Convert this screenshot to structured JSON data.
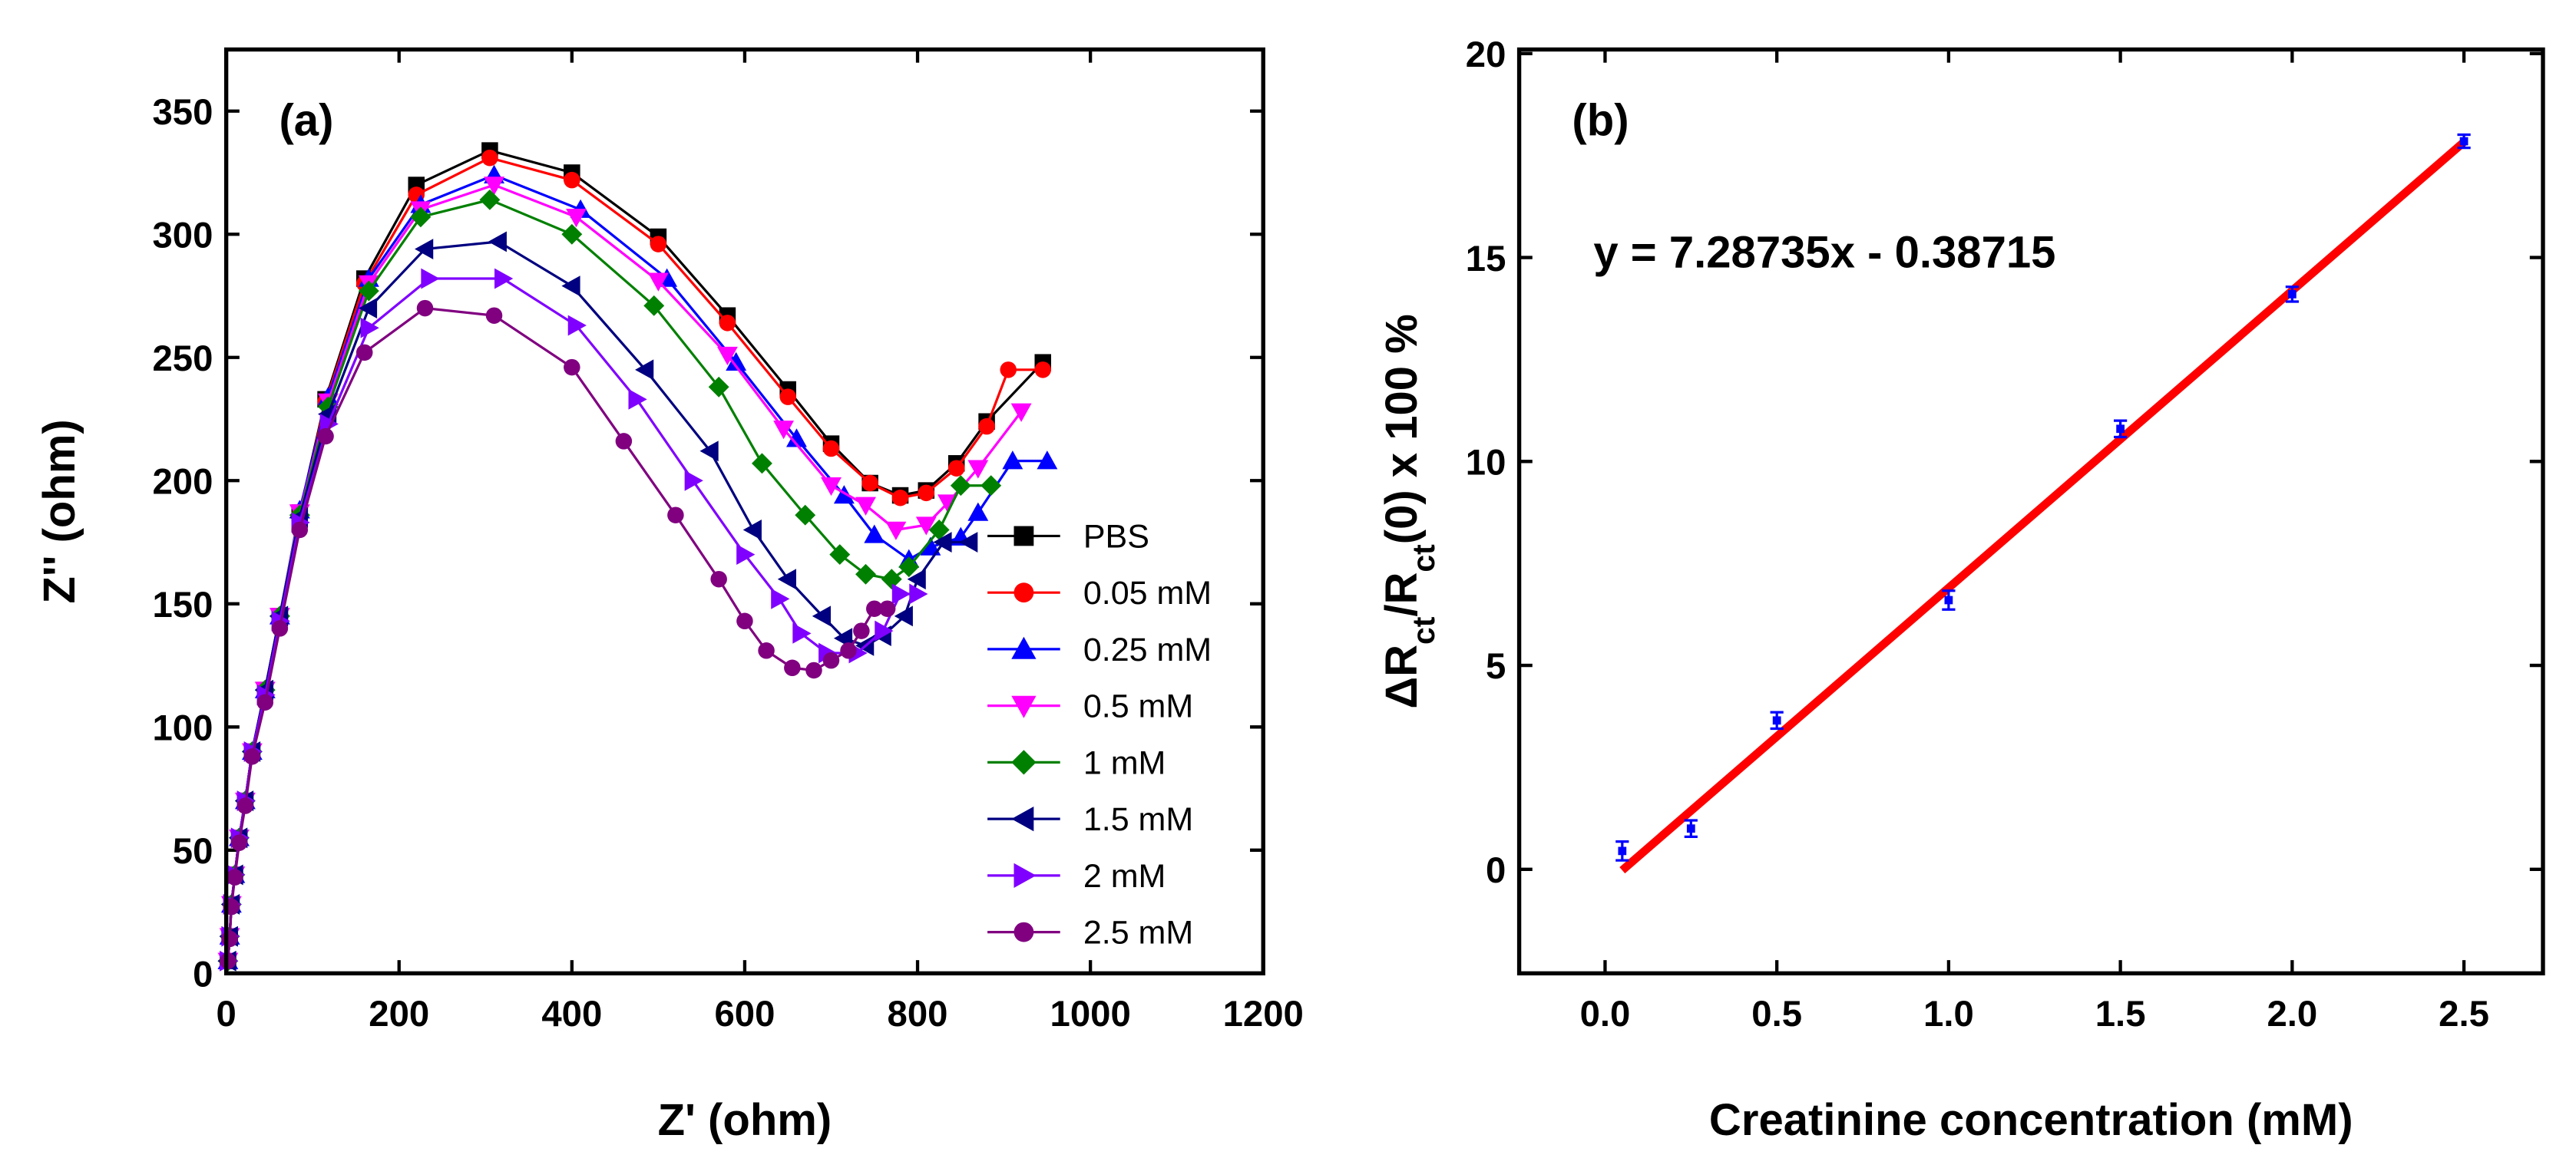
{
  "chart_data": [
    {
      "type": "line",
      "label": "(a)",
      "xlabel": "Z' (ohm)",
      "ylabel": "Z'' (ohm)",
      "xlim": [
        0,
        1200
      ],
      "ylim": [
        0,
        375
      ],
      "xticks": [
        0,
        200,
        400,
        600,
        800,
        1000,
        1200
      ],
      "yticks": [
        0,
        50,
        100,
        150,
        200,
        250,
        300,
        350
      ],
      "legend": "lower right",
      "series": [
        {
          "name": "PBS",
          "color": "#000000",
          "marker": "square",
          "x": [
            2,
            4,
            6,
            10,
            15,
            22,
            30,
            45,
            62,
            85,
            115,
            160,
            220,
            305,
            400,
            500,
            580,
            650,
            700,
            745,
            780,
            810,
            845,
            880,
            945
          ],
          "values": [
            5,
            15,
            28,
            40,
            55,
            70,
            90,
            115,
            145,
            187,
            233,
            282,
            320,
            334,
            325,
            299,
            267,
            237,
            215,
            199,
            194,
            196,
            207,
            224,
            248
          ]
        },
        {
          "name": "0.05 mM",
          "color": "#ff0000",
          "marker": "circle",
          "x": [
            2,
            4,
            6,
            10,
            15,
            22,
            30,
            45,
            62,
            85,
            115,
            160,
            220,
            305,
            400,
            500,
            580,
            650,
            700,
            745,
            780,
            810,
            845,
            880,
            905,
            945
          ],
          "values": [
            5,
            15,
            28,
            40,
            55,
            70,
            90,
            115,
            145,
            186,
            232,
            280,
            316,
            331,
            322,
            296,
            264,
            234,
            213,
            199,
            193,
            195,
            205,
            222,
            245,
            245
          ]
        },
        {
          "name": "0.25 mM",
          "color": "#0000ff",
          "marker": "triangle-up",
          "x": [
            2,
            4,
            6,
            10,
            15,
            22,
            30,
            45,
            62,
            85,
            118,
            165,
            225,
            310,
            410,
            510,
            590,
            660,
            715,
            750,
            790,
            815,
            850,
            870,
            910,
            950
          ],
          "values": [
            5,
            15,
            28,
            40,
            55,
            70,
            90,
            115,
            145,
            188,
            234,
            282,
            312,
            324,
            310,
            282,
            248,
            217,
            194,
            178,
            168,
            173,
            177,
            187,
            208,
            208
          ]
        },
        {
          "name": "0.5 mM",
          "color": "#ff00ff",
          "marker": "triangle-down",
          "x": [
            2,
            4,
            6,
            10,
            15,
            22,
            30,
            45,
            62,
            85,
            118,
            165,
            225,
            310,
            405,
            500,
            580,
            645,
            700,
            740,
            775,
            810,
            835,
            870,
            920
          ],
          "values": [
            5,
            15,
            28,
            40,
            55,
            70,
            90,
            115,
            145,
            187,
            232,
            280,
            310,
            320,
            307,
            281,
            251,
            221,
            198,
            190,
            180,
            182,
            191,
            205,
            228
          ]
        },
        {
          "name": "1 mM",
          "color": "#008000",
          "marker": "diamond",
          "x": [
            2,
            4,
            6,
            10,
            15,
            22,
            30,
            45,
            62,
            85,
            118,
            165,
            225,
            305,
            400,
            495,
            570,
            620,
            670,
            710,
            740,
            770,
            790,
            825,
            850,
            885
          ],
          "values": [
            5,
            15,
            28,
            40,
            55,
            70,
            90,
            115,
            145,
            186,
            230,
            277,
            307,
            314,
            300,
            271,
            238,
            207,
            186,
            170,
            162,
            160,
            165,
            180,
            198,
            198
          ]
        },
        {
          "name": "1.5 mM",
          "color": "#000080",
          "marker": "triangle-left",
          "x": [
            2,
            4,
            6,
            10,
            15,
            22,
            30,
            45,
            62,
            85,
            118,
            165,
            230,
            315,
            400,
            485,
            560,
            610,
            650,
            690,
            715,
            740,
            760,
            785,
            800,
            830,
            860
          ],
          "values": [
            5,
            15,
            28,
            40,
            55,
            70,
            90,
            115,
            145,
            185,
            227,
            270,
            294,
            297,
            279,
            245,
            212,
            180,
            160,
            145,
            136,
            133,
            137,
            145,
            160,
            175,
            175
          ]
        },
        {
          "name": "2 mM",
          "color": "#8000ff",
          "marker": "triangle-right",
          "x": [
            2,
            4,
            6,
            10,
            15,
            22,
            30,
            45,
            62,
            85,
            118,
            165,
            235,
            320,
            405,
            475,
            540,
            600,
            640,
            665,
            695,
            730,
            760,
            780,
            800
          ],
          "values": [
            5,
            15,
            28,
            40,
            55,
            70,
            90,
            113,
            143,
            183,
            223,
            262,
            282,
            282,
            263,
            233,
            200,
            170,
            152,
            138,
            130,
            130,
            139,
            154,
            154
          ]
        },
        {
          "name": "2.5 mM",
          "color": "#800080",
          "marker": "circle",
          "x": [
            2,
            4,
            6,
            10,
            15,
            22,
            30,
            45,
            62,
            85,
            115,
            160,
            230,
            310,
            400,
            460,
            520,
            570,
            600,
            625,
            655,
            680,
            700,
            720,
            735,
            750,
            765
          ],
          "values": [
            5,
            14,
            27,
            39,
            53,
            68,
            88,
            110,
            140,
            180,
            218,
            252,
            270,
            267,
            246,
            216,
            186,
            160,
            143,
            131,
            124,
            123,
            127,
            131,
            139,
            148,
            148
          ]
        }
      ]
    },
    {
      "type": "scatter",
      "label": "(b)",
      "xlabel": "Creatinine concentration (mM)",
      "ylabel": [
        {
          "text": "ΔR"
        },
        {
          "text": "ct",
          "sub": true
        },
        {
          "text": "/R"
        },
        {
          "text": "ct",
          "sub": true
        },
        {
          "text": "(0) x 100 %"
        }
      ],
      "annotation": "y = 7.28735x - 0.38715",
      "xlim": [
        -0.25,
        2.73
      ],
      "ylim": [
        -2.55,
        20.1
      ],
      "xticks": [
        {
          "value": 0,
          "label": "0.0"
        },
        0.5,
        {
          "value": 1,
          "label": "1.0"
        },
        1.5,
        {
          "value": 2,
          "label": "2.0"
        },
        2.5
      ],
      "yticks": [
        0,
        5,
        10,
        15,
        20
      ],
      "series": [
        {
          "color": "#0000ff",
          "x": [
            0.05,
            0.25,
            0.5,
            1.0,
            1.5,
            2.0,
            2.5
          ],
          "values": [
            0.45,
            1.0,
            3.65,
            6.6,
            10.8,
            14.1,
            17.85
          ],
          "errors": [
            0.15,
            0.12,
            0.12,
            0.15,
            0.12,
            0.1,
            0.08
          ]
        }
      ],
      "fit": {
        "color": "#ff0000",
        "x": [
          0.05,
          2.5
        ],
        "values": [
          -0.0228,
          17.831
        ]
      }
    }
  ]
}
